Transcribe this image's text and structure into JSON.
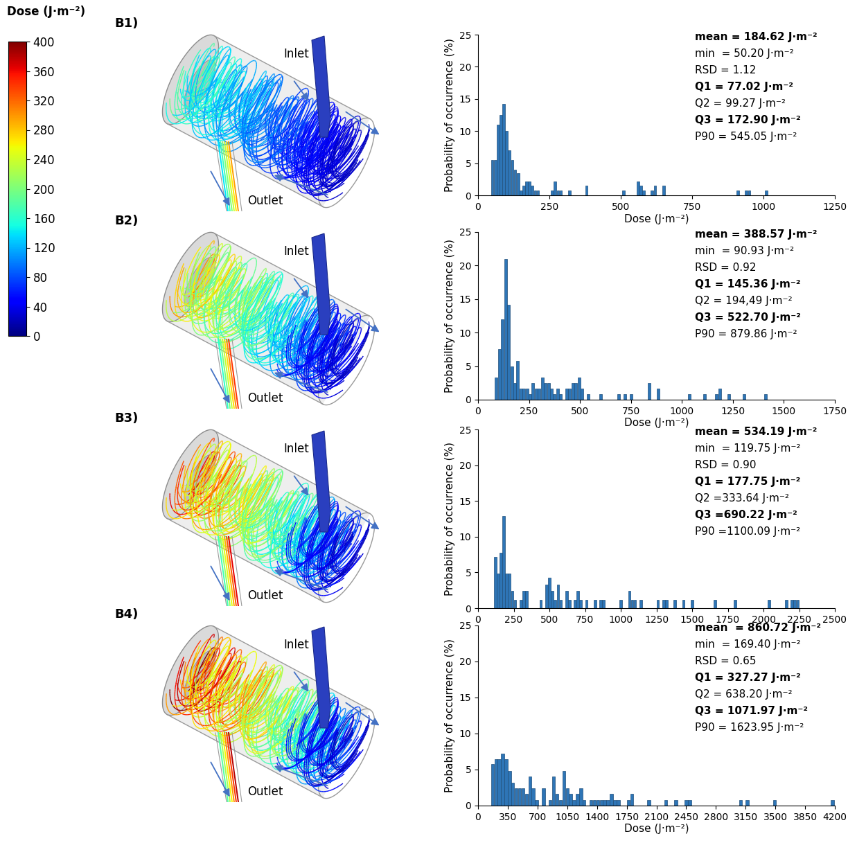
{
  "colorbar": {
    "label": "Dose (J·m⁻²)",
    "range": [
      0,
      400
    ],
    "ticks": [
      0,
      40,
      80,
      120,
      160,
      200,
      240,
      280,
      320,
      360,
      400
    ]
  },
  "diagram": {
    "inlet": "Inlet",
    "outlet": "Outlet"
  },
  "chart_data": [
    {
      "type": "bar",
      "panel": "B1)",
      "xlabel": "Dose (J·m⁻²)",
      "ylabel": "Probability of occurrence (%)",
      "color": "#2e75b6",
      "x": [
        50,
        60,
        70,
        80,
        90,
        100,
        110,
        120,
        130,
        140,
        150,
        160,
        170,
        180,
        190,
        200,
        210,
        260,
        270,
        280,
        290,
        320,
        380,
        510,
        560,
        570,
        580,
        610,
        620,
        650,
        910,
        940,
        950,
        1010
      ],
      "values": [
        5.5,
        5.5,
        11,
        12.5,
        14.2,
        10,
        7,
        5.5,
        4,
        3.5,
        0.8,
        1.5,
        2.2,
        2.2,
        1.5,
        0.8,
        0.8,
        0.8,
        2.2,
        0.8,
        0.8,
        0.8,
        1.5,
        0.8,
        2.2,
        1.5,
        0.8,
        0.8,
        1.5,
        1.5,
        0.8,
        0.8,
        0.8,
        0.8
      ],
      "xlim": [
        0,
        1250
      ],
      "xticks": [
        0,
        250,
        500,
        750,
        1000,
        1250
      ],
      "ylim": [
        0,
        25
      ],
      "yticks": [
        0,
        5,
        10,
        15,
        20,
        25
      ],
      "stats": [
        "mean = 184.62 J·m⁻²",
        "min  = 50.20 J·m⁻²",
        "RSD = 1.12",
        "Q1 = 77.02 J·m⁻²",
        "Q2 = 99.27 J·m⁻²",
        "Q3 = 172.90 J·m⁻²",
        "P90 = 545.05 J·m⁻²"
      ]
    },
    {
      "type": "bar",
      "panel": "B2)",
      "xlabel": "Dose (J·m⁻²)",
      "ylabel": "Probability of occurrence (%)",
      "color": "#2e75b6",
      "x": [
        90,
        105,
        120,
        135,
        150,
        165,
        180,
        195,
        210,
        225,
        240,
        255,
        270,
        285,
        300,
        315,
        330,
        345,
        360,
        375,
        390,
        405,
        435,
        450,
        465,
        480,
        495,
        510,
        540,
        600,
        690,
        720,
        750,
        840,
        885,
        1035,
        1110,
        1170,
        1185,
        1230,
        1305,
        1410
      ],
      "values": [
        3.3,
        7.5,
        12,
        21,
        14.2,
        5,
        2.5,
        5.8,
        1.7,
        1.7,
        1.7,
        0.8,
        2.5,
        1.7,
        1.7,
        3.3,
        2.5,
        2.5,
        1.7,
        0.8,
        1.7,
        0.8,
        1.7,
        1.7,
        2.5,
        2.5,
        3.3,
        1.7,
        0.8,
        0.8,
        0.8,
        0.8,
        0.8,
        2.5,
        1.7,
        0.8,
        0.8,
        0.8,
        1.7,
        0.8,
        0.8,
        0.8
      ],
      "xlim": [
        0,
        1750
      ],
      "xticks": [
        0,
        250,
        500,
        750,
        1000,
        1250,
        1500,
        1750
      ],
      "ylim": [
        0,
        25
      ],
      "yticks": [
        0,
        5,
        10,
        15,
        20,
        25
      ],
      "stats": [
        "mean = 388.57 J·m⁻²",
        "min  = 90.93 J·m⁻²",
        "RSD = 0.92",
        "Q1 = 145.36 J·m⁻²",
        "Q2 = 194,49 J·m⁻²",
        "Q3 = 522.70 J·m⁻²",
        "P90 = 879.86 J·m⁻²"
      ]
    },
    {
      "type": "bar",
      "panel": "B3)",
      "xlabel": "Dose (J·m⁻²)",
      "ylabel": "Probability of occurrence (%)",
      "color": "#2e75b6",
      "x": [
        120,
        140,
        160,
        180,
        200,
        220,
        240,
        260,
        300,
        320,
        340,
        440,
        480,
        500,
        520,
        540,
        560,
        580,
        620,
        640,
        680,
        700,
        720,
        760,
        820,
        860,
        880,
        1000,
        1060,
        1080,
        1100,
        1140,
        1260,
        1300,
        1320,
        1380,
        1440,
        1500,
        1660,
        1800,
        2040,
        2160,
        2200,
        2220,
        2240
      ],
      "values": [
        7.2,
        4.8,
        7.8,
        12.9,
        4.8,
        4.8,
        2.4,
        1.2,
        1.2,
        2.4,
        2.4,
        1.2,
        3.3,
        4.3,
        2.4,
        1.2,
        3.3,
        1.2,
        2.4,
        1.2,
        1.2,
        2.4,
        1.2,
        1.2,
        1.2,
        1.2,
        1.2,
        1.2,
        2.4,
        1.2,
        1.2,
        1.2,
        1.2,
        1.2,
        1.2,
        1.2,
        1.2,
        1.2,
        1.2,
        1.2,
        1.2,
        1.2,
        1.2,
        1.2,
        1.2
      ],
      "xlim": [
        0,
        2500
      ],
      "xticks": [
        0,
        250,
        500,
        750,
        1000,
        1250,
        1500,
        1750,
        2000,
        2250,
        2500
      ],
      "ylim": [
        0,
        25
      ],
      "yticks": [
        0,
        5,
        10,
        15,
        20,
        25
      ],
      "stats": [
        "mean = 534.19 J·m⁻²",
        "min  = 119.75 J·m⁻²",
        "RSD = 0.90",
        "Q1 = 177.75 J·m⁻²",
        "Q2 =333.64 J·m⁻²",
        "Q3 =690.22 J·m⁻²",
        "P90 =1100.09 J·m⁻²"
      ]
    },
    {
      "type": "bar",
      "panel": "B4)",
      "xlabel": "Dose (J·m⁻²)",
      "ylabel": "Probability of occurrence (%)",
      "color": "#2e75b6",
      "x": [
        170,
        210,
        250,
        290,
        330,
        370,
        410,
        450,
        490,
        530,
        570,
        610,
        650,
        690,
        770,
        850,
        890,
        930,
        970,
        1010,
        1050,
        1090,
        1130,
        1170,
        1210,
        1250,
        1330,
        1370,
        1410,
        1450,
        1490,
        1530,
        1570,
        1610,
        1650,
        1770,
        1810,
        2010,
        2210,
        2330,
        2450,
        2490,
        3090,
        3170,
        3490,
        4170
      ],
      "values": [
        5.8,
        6.4,
        6.4,
        7.2,
        6.4,
        4.8,
        3.2,
        2.4,
        2.4,
        2.4,
        1.6,
        4,
        2.4,
        0.8,
        2.4,
        0.8,
        4,
        1.6,
        0.8,
        4.8,
        2.4,
        1.6,
        0.8,
        1.6,
        2.4,
        0.8,
        0.8,
        0.8,
        0.8,
        0.8,
        0.8,
        0.8,
        1.6,
        0.8,
        0.8,
        0.8,
        1.6,
        0.8,
        0.8,
        0.8,
        0.8,
        0.8,
        0.8,
        0.8,
        0.8,
        0.8
      ],
      "xlim": [
        0,
        4200
      ],
      "xticks": [
        0,
        350,
        700,
        1050,
        1400,
        1750,
        2100,
        2450,
        2800,
        3150,
        3500,
        3850,
        4200
      ],
      "ylim": [
        0,
        25
      ],
      "yticks": [
        0,
        5,
        10,
        15,
        20,
        25
      ],
      "stats": [
        "mean  = 860.72 J·m⁻²",
        "min  = 169.40 J·m⁻²",
        "RSD = 0.65",
        "Q1 = 327.27 J·m⁻²",
        "Q2 = 638.20 J·m⁻²",
        "Q3 = 1071.97 J·m⁻²",
        "P90 = 1623.95 J·m⁻²"
      ]
    }
  ]
}
